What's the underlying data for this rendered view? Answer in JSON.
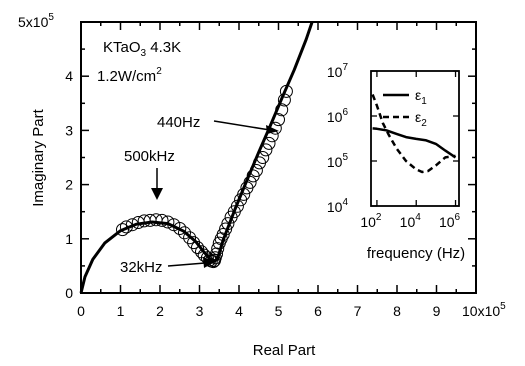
{
  "chart_data": [
    {
      "type": "scatter",
      "xlabel": "Real Part",
      "ylabel": "Imaginary Part",
      "xlim": [
        0,
        1000000
      ],
      "ylim": [
        0,
        500000
      ],
      "x_ticks": [
        "0",
        "1",
        "2",
        "3",
        "4",
        "5",
        "6",
        "7",
        "8",
        "9"
      ],
      "x_tick_values": [
        0,
        1,
        2,
        3,
        4,
        5,
        6,
        7,
        8,
        9
      ],
      "x_multiplier_label": "10x10",
      "x_multiplier_exp": "5",
      "y_ticks": [
        "0",
        "1",
        "2",
        "3",
        "4"
      ],
      "y_tick_values": [
        0,
        1,
        2,
        3,
        4
      ],
      "y_max_label": "5x10",
      "y_max_exp": "5",
      "sample_label": "KTaO",
      "sample_sub": "3",
      "sample_temp": " 4.3K",
      "power_label": "1.2W/cm",
      "power_exp": "2",
      "annotations": {
        "a440": "440Hz",
        "a500k": "500kHz",
        "a32k": "32kHz"
      },
      "series": [
        {
          "style": "line",
          "x": [
            0.0,
            0.1,
            0.3,
            0.6,
            1.0,
            1.4,
            1.8,
            2.2,
            2.6,
            2.9,
            3.1,
            3.25,
            3.35,
            3.45,
            3.6,
            3.9,
            4.2,
            4.5,
            4.8,
            5.1,
            5.4,
            5.7,
            5.85
          ],
          "y": [
            0.0,
            0.3,
            0.62,
            0.92,
            1.15,
            1.27,
            1.31,
            1.28,
            1.14,
            0.95,
            0.77,
            0.64,
            0.58,
            0.62,
            0.98,
            1.55,
            2.08,
            2.6,
            3.1,
            3.62,
            4.12,
            4.68,
            5.0
          ]
        },
        {
          "style": "circles",
          "x": [
            1.05,
            1.15,
            1.3,
            1.45,
            1.6,
            1.75,
            1.9,
            2.05,
            2.2,
            2.35,
            2.5,
            2.62,
            2.75,
            2.85,
            2.95,
            3.05,
            3.12,
            3.2,
            3.26,
            3.3,
            3.35,
            3.38,
            3.4,
            3.43,
            3.46,
            3.5,
            3.55,
            3.6,
            3.66,
            3.72,
            3.8,
            3.88,
            3.96,
            4.04,
            4.12,
            4.2,
            4.28,
            4.36,
            4.44,
            4.52,
            4.6,
            4.68,
            4.76,
            4.84,
            4.92,
            5.0,
            5.08,
            5.15,
            5.2
          ],
          "y": [
            1.17,
            1.22,
            1.26,
            1.3,
            1.33,
            1.34,
            1.35,
            1.34,
            1.31,
            1.26,
            1.19,
            1.11,
            1.02,
            0.93,
            0.84,
            0.76,
            0.7,
            0.65,
            0.61,
            0.59,
            0.58,
            0.6,
            0.65,
            0.72,
            0.82,
            0.92,
            1.0,
            1.08,
            1.18,
            1.28,
            1.4,
            1.5,
            1.6,
            1.72,
            1.82,
            1.94,
            2.04,
            2.16,
            2.26,
            2.4,
            2.5,
            2.64,
            2.76,
            2.9,
            3.04,
            3.2,
            3.38,
            3.56,
            3.72
          ]
        }
      ]
    },
    {
      "type": "line",
      "xlabel": "frequency (Hz)",
      "x_scale": "log",
      "y_scale": "log",
      "xlim": [
        50,
        1500000
      ],
      "ylim": [
        10000,
        10000000
      ],
      "x_ticks": [
        {
          "base": "10",
          "exp": "2",
          "value": 100
        },
        {
          "base": "10",
          "exp": "4",
          "value": 10000
        },
        {
          "base": "10",
          "exp": "6",
          "value": 1000000
        }
      ],
      "y_ticks": [
        {
          "base": "10",
          "exp": "4",
          "value": 10000
        },
        {
          "base": "10",
          "exp": "5",
          "value": 100000
        },
        {
          "base": "10",
          "exp": "6",
          "value": 1000000
        },
        {
          "base": "10",
          "exp": "7",
          "value": 10000000
        }
      ],
      "legend_position": "top-right",
      "series": [
        {
          "name": "ε",
          "sub": "1",
          "style": "solid",
          "x": [
            60,
            100,
            300,
            1000,
            3000,
            10000,
            30000,
            100000,
            300000,
            1000000
          ],
          "y": [
            530000,
            520000,
            480000,
            400000,
            340000,
            310000,
            290000,
            240000,
            170000,
            120000
          ]
        },
        {
          "name": "ε",
          "sub": "2",
          "style": "dashed",
          "x": [
            60,
            100,
            200,
            400,
            1000,
            3000,
            10000,
            20000,
            40000,
            100000,
            300000,
            1000000
          ],
          "y": [
            3000000,
            1700000,
            700000,
            380000,
            190000,
            100000,
            65000,
            57000,
            60000,
            80000,
            120000,
            130000
          ]
        }
      ]
    }
  ]
}
